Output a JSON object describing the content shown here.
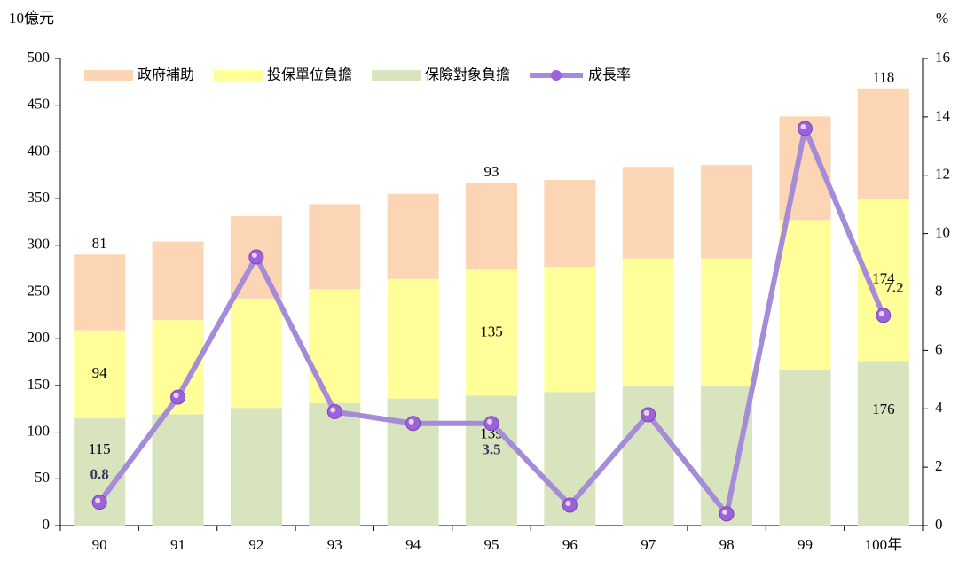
{
  "chart_data": {
    "type": "bar",
    "stacked": true,
    "y_label": "10億元",
    "y2_label": "%",
    "categories": [
      "90",
      "91",
      "92",
      "93",
      "94",
      "95",
      "96",
      "97",
      "98",
      "99",
      "100年"
    ],
    "series": [
      {
        "name": "保險對象負擔",
        "color": "#d7e4bd",
        "values": [
          115,
          119,
          126,
          131,
          136,
          139,
          143,
          149,
          149,
          167,
          176
        ],
        "value_labels": [
          "115",
          null,
          null,
          null,
          null,
          "139",
          null,
          null,
          null,
          null,
          "176"
        ]
      },
      {
        "name": "投保單位負擔",
        "color": "#ffff99",
        "values": [
          94,
          101,
          117,
          122,
          128,
          135,
          134,
          137,
          137,
          160,
          174
        ],
        "value_labels": [
          "94",
          null,
          null,
          null,
          null,
          "135",
          null,
          null,
          null,
          null,
          "174"
        ]
      },
      {
        "name": "政府補助",
        "color": "#fcd5b4",
        "values": [
          81,
          84,
          88,
          91,
          91,
          93,
          93,
          98,
          100,
          111,
          118
        ],
        "value_labels": [
          "81",
          null,
          null,
          null,
          null,
          "93",
          null,
          null,
          null,
          null,
          "118"
        ]
      },
      {
        "name": "成長率",
        "type": "line",
        "axis": "y2",
        "color": "#a58bd8",
        "values": [
          0.8,
          4.4,
          9.2,
          3.9,
          3.5,
          3.5,
          0.7,
          3.8,
          0.4,
          13.6,
          7.2
        ],
        "value_labels": [
          "0.8",
          null,
          null,
          null,
          null,
          "3.5",
          null,
          null,
          null,
          null,
          "7.2"
        ]
      }
    ],
    "legend_order": [
      2,
      1,
      0,
      3
    ],
    "ylim": [
      0,
      500
    ],
    "yticks": [
      0,
      50,
      100,
      150,
      200,
      250,
      300,
      350,
      400,
      450,
      500
    ],
    "y2lim": [
      0,
      16
    ],
    "y2ticks": [
      0,
      2,
      4,
      6,
      8,
      10,
      12,
      14,
      16
    ],
    "grid": false,
    "legend": "top"
  }
}
